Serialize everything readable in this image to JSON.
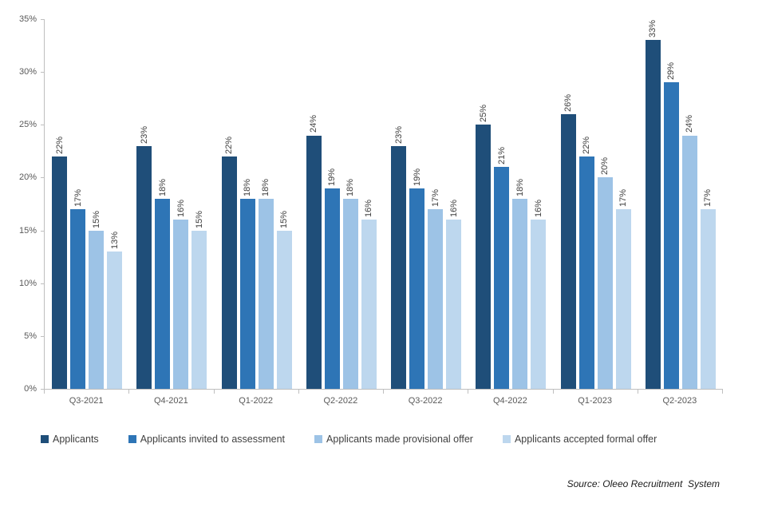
{
  "source": "Source: Oleeo Recruitment  System",
  "chart_data": {
    "type": "bar",
    "title": "",
    "xlabel": "",
    "ylabel": "",
    "ylim": [
      0,
      35
    ],
    "yticks": [
      0,
      5,
      10,
      15,
      20,
      25,
      30,
      35
    ],
    "ytick_suffix": "%",
    "grid": false,
    "legend_position": "bottom",
    "data_labels": "rotated-vertical-percent",
    "categories": [
      "Q3-2021",
      "Q4-2021",
      "Q1-2022",
      "Q2-2022",
      "Q3-2022",
      "Q4-2022",
      "Q1-2023",
      "Q2-2023"
    ],
    "series": [
      {
        "name": "Applicants",
        "color": "#1F4E79",
        "values": [
          22,
          23,
          22,
          24,
          23,
          25,
          26,
          33
        ]
      },
      {
        "name": "Applicants invited to assessment",
        "color": "#2E75B6",
        "values": [
          17,
          18,
          18,
          19,
          19,
          21,
          22,
          29
        ]
      },
      {
        "name": "Applicants made provisional offer",
        "color": "#9DC3E6",
        "values": [
          15,
          16,
          18,
          18,
          17,
          18,
          20,
          24
        ]
      },
      {
        "name": "Applicants accepted formal offer",
        "color": "#BDD7EE",
        "values": [
          13,
          15,
          15,
          16,
          16,
          16,
          17,
          17
        ]
      }
    ]
  }
}
